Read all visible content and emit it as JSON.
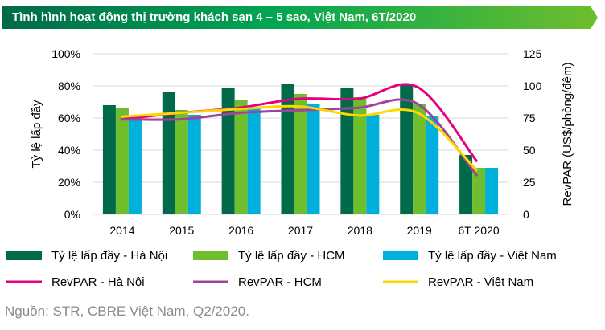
{
  "title": "Tình hình hoạt động thị trường khách sạn 4 – 5 sao, Việt Nam, 6T/2020",
  "source": "Nguồn: STR, CBRE Việt Nam, Q2/2020.",
  "chart_data": {
    "type": "bar+line",
    "categories": [
      "2014",
      "2015",
      "2016",
      "2017",
      "2018",
      "2019",
      "6T 2020"
    ],
    "ylabel": "Tỷ lệ lấp đầy",
    "y2label": "RevPAR (US$/phòng/đêm)",
    "ylim": [
      0,
      100
    ],
    "yticks": [
      "0%",
      "20%",
      "40%",
      "60%",
      "80%",
      "100%"
    ],
    "y2lim": [
      0,
      125
    ],
    "y2ticks": [
      "0",
      "25",
      "50",
      "75",
      "100",
      "125"
    ],
    "grid": true,
    "legend": "bottom",
    "bars": [
      {
        "name": "Tỷ lệ lấp đầy - Hà Nội",
        "color": "#006a4a",
        "values": [
          68,
          76,
          79,
          81,
          79,
          81,
          37
        ]
      },
      {
        "name": "Tỷ lệ lấp đầy - HCM",
        "color": "#6ebe2d",
        "values": [
          66,
          65,
          71,
          75,
          73,
          69,
          29
        ]
      },
      {
        "name": "Tỷ lệ lấp đầy - Việt Nam",
        "color": "#00b0dc",
        "values": [
          60,
          62,
          67,
          69,
          62,
          61,
          29
        ]
      }
    ],
    "lines": [
      {
        "name": "RevPAR - Hà Nội",
        "color": "#e6007e",
        "values": [
          74,
          79,
          83,
          90,
          90,
          99,
          41
        ]
      },
      {
        "name": "RevPAR - HCM",
        "color": "#a0449a",
        "values": [
          74,
          74,
          79,
          81,
          83,
          86,
          30
        ]
      },
      {
        "name": "RevPAR - Việt Nam",
        "color": "#ffd700",
        "values": [
          76,
          79,
          82,
          84,
          77,
          79,
          34
        ]
      }
    ]
  }
}
